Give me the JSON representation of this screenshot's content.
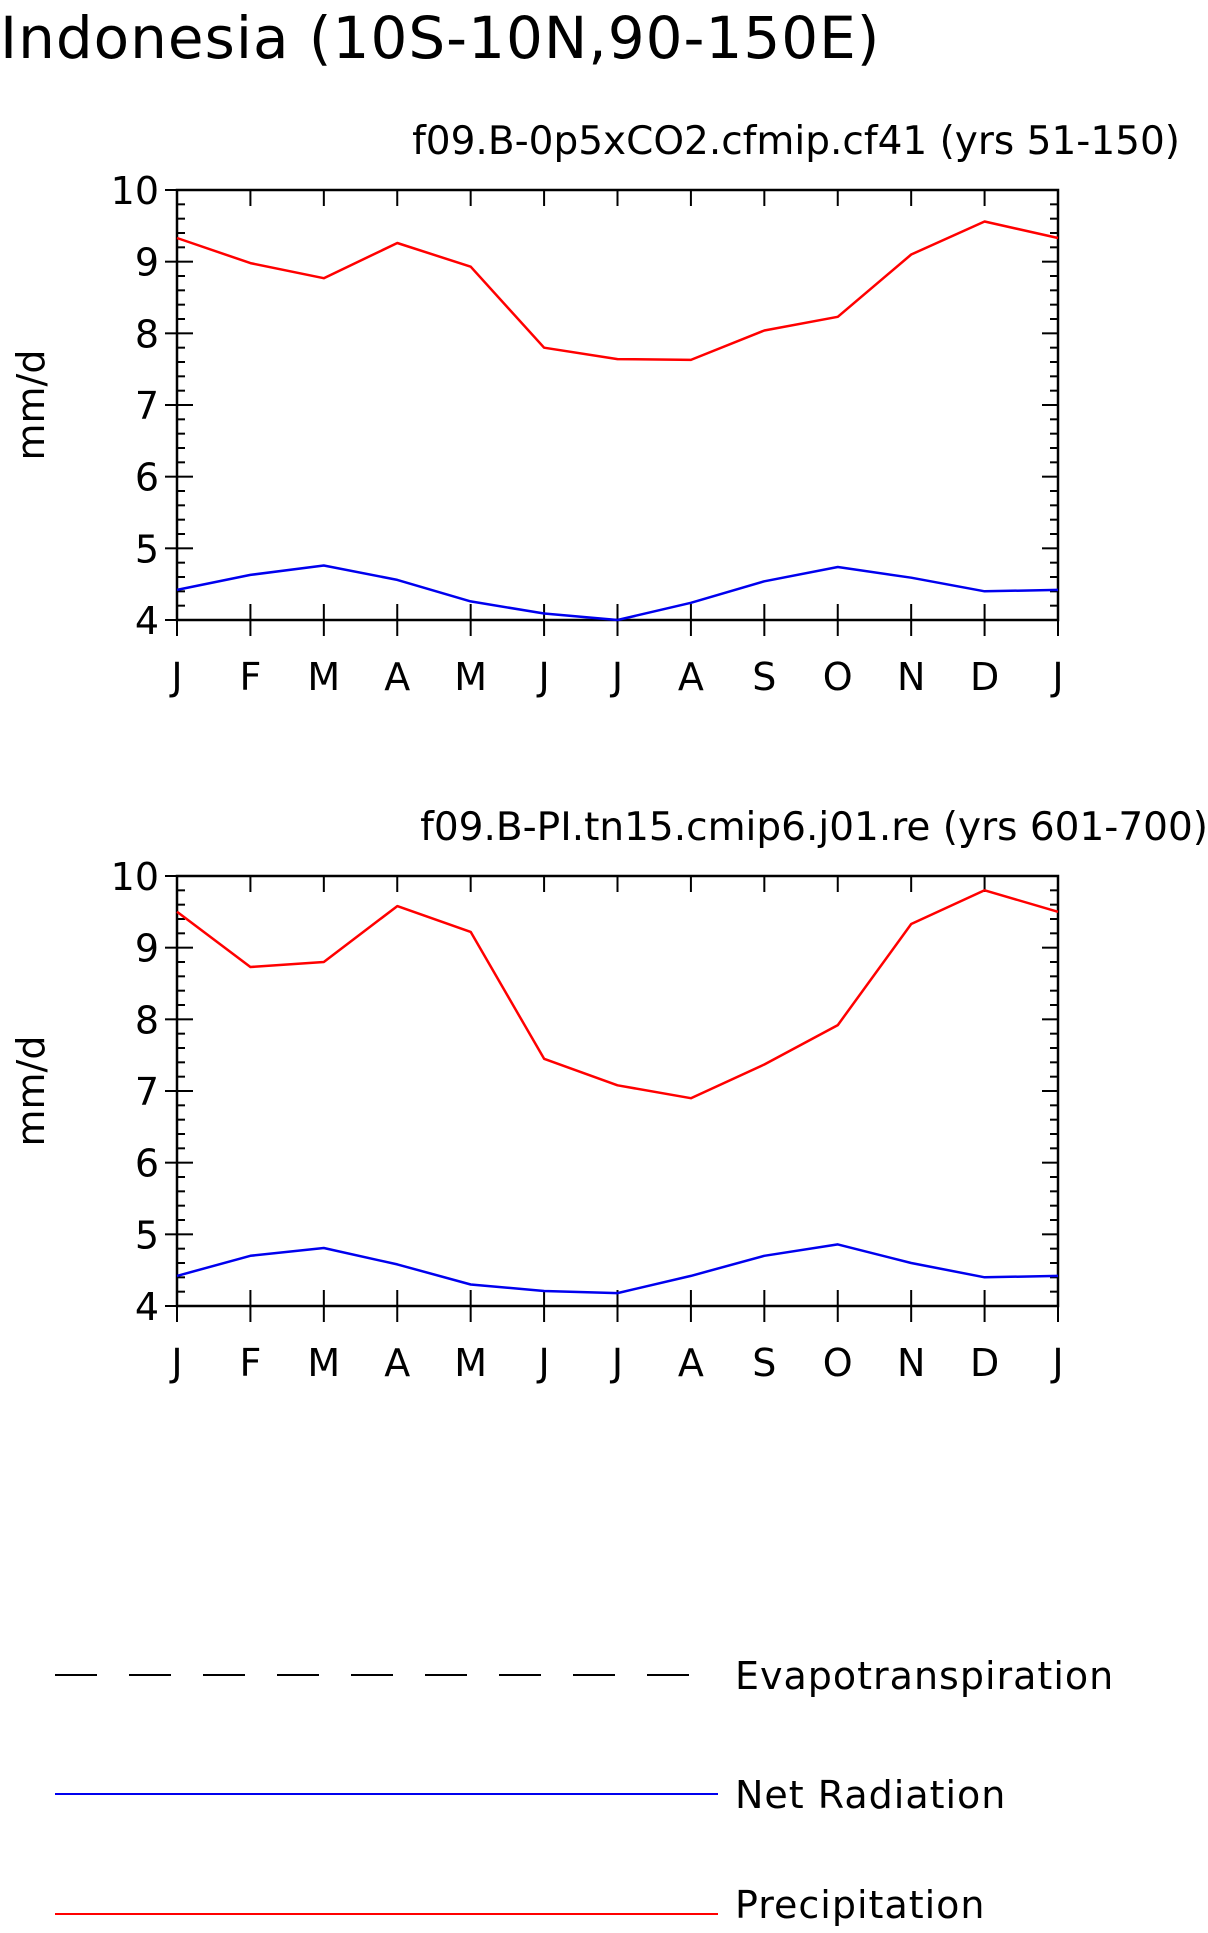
{
  "title": "Indonesia (10S-10N,90-150E)",
  "legend": [
    {
      "label": "Evapotranspiration",
      "color": "#000000",
      "style": "dashed"
    },
    {
      "label": "Net Radiation",
      "color": "#0000ee",
      "style": "solid"
    },
    {
      "label": "Precipitation",
      "color": "#ff0000",
      "style": "solid"
    }
  ],
  "chart_data": [
    {
      "type": "line",
      "title": "f09.B-0p5xCO2.cfmip.cf41 (yrs 51-150)",
      "xlabel": "",
      "ylabel": "mm/d",
      "categories": [
        "J",
        "F",
        "M",
        "A",
        "M",
        "J",
        "J",
        "A",
        "S",
        "O",
        "N",
        "D",
        "J"
      ],
      "ylim": [
        4,
        10
      ],
      "yticks": [
        4,
        5,
        6,
        7,
        8,
        9,
        10
      ],
      "series": [
        {
          "name": "Net Radiation",
          "color": "#0000ee",
          "values": [
            4.42,
            4.63,
            4.76,
            4.56,
            4.26,
            4.09,
            4.0,
            4.24,
            4.54,
            4.74,
            4.59,
            4.4,
            4.42
          ]
        },
        {
          "name": "Precipitation",
          "color": "#ff0000",
          "values": [
            9.33,
            8.98,
            8.77,
            9.26,
            8.93,
            7.8,
            7.64,
            7.63,
            8.04,
            8.23,
            9.1,
            9.56,
            9.33
          ]
        }
      ]
    },
    {
      "type": "line",
      "title": "f09.B-PI.tn15.cmip6.j01.re (yrs 601-700)",
      "xlabel": "",
      "ylabel": "mm/d",
      "categories": [
        "J",
        "F",
        "M",
        "A",
        "M",
        "J",
        "J",
        "A",
        "S",
        "O",
        "N",
        "D",
        "J"
      ],
      "ylim": [
        4,
        10
      ],
      "yticks": [
        4,
        5,
        6,
        7,
        8,
        9,
        10
      ],
      "series": [
        {
          "name": "Net Radiation",
          "color": "#0000ee",
          "values": [
            4.42,
            4.7,
            4.81,
            4.58,
            4.3,
            4.21,
            4.18,
            4.42,
            4.7,
            4.86,
            4.6,
            4.4,
            4.42
          ]
        },
        {
          "name": "Precipitation",
          "color": "#ff0000",
          "values": [
            9.5,
            8.73,
            8.8,
            9.58,
            9.22,
            7.45,
            7.08,
            6.9,
            7.37,
            7.92,
            9.33,
            9.8,
            9.5
          ]
        }
      ]
    }
  ]
}
